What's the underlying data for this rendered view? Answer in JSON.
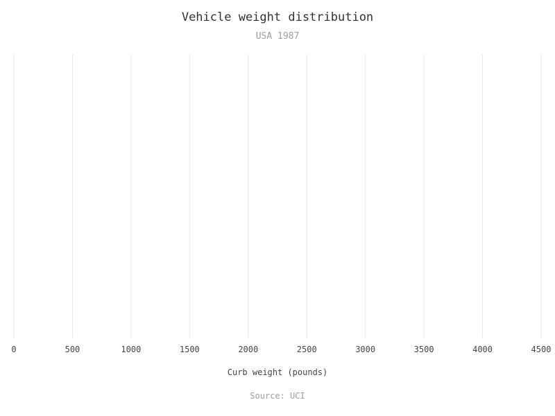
{
  "chart_data": {
    "type": "bar",
    "title": "Vehicle weight distribution",
    "subtitle": "USA 1987",
    "xlabel": "Curb weight (pounds)",
    "ylabel": "",
    "source": "Source: UCI",
    "xlim": [
      0,
      4500
    ],
    "x_ticks": [
      "0",
      "500",
      "1000",
      "1500",
      "2000",
      "2500",
      "3000",
      "3500",
      "4000",
      "4500"
    ],
    "grid": "vertical",
    "values": [],
    "colors": {
      "grid": "#e6e6e6",
      "title": "#333333",
      "subtitle": "#9e9e9e",
      "axis_text": "#444444"
    }
  }
}
